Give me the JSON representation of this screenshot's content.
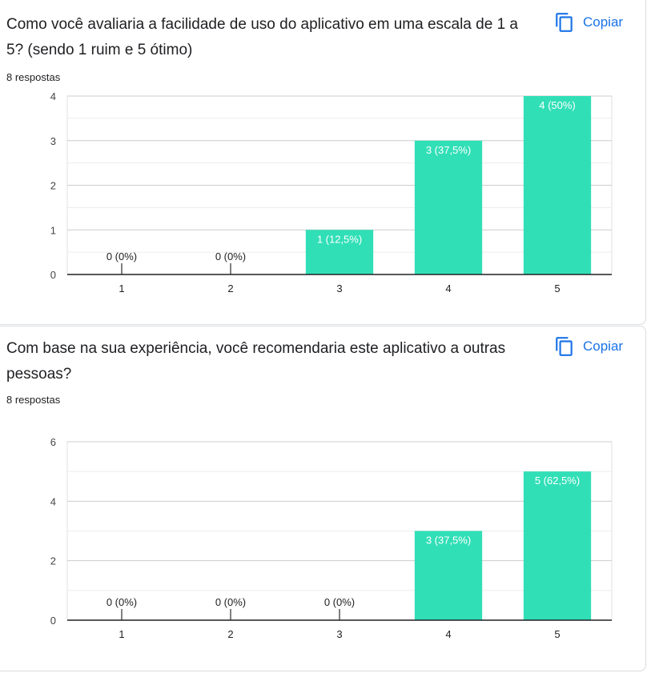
{
  "questions": [
    {
      "title": "Como você avaliaria a facilidade de uso do aplicativo em uma escala de 1 a 5? (sendo 1 ruim e 5 ótimo)",
      "responses": "8 respostas",
      "copy_label": "Copiar",
      "copy_icon": "copy-icon"
    },
    {
      "title": "Com base na sua experiência, você recomendaria este aplicativo a outras pessoas?",
      "responses": "8 respostas",
      "copy_label": "Copiar",
      "copy_icon": "copy-icon"
    }
  ],
  "colors": {
    "bar": "#31dfb7",
    "accent": "#1a73e8",
    "grid": "#e0e0e0",
    "axis": "#202124",
    "label_on_bar": "#ffffff"
  },
  "chart_data": [
    {
      "type": "bar",
      "categories": [
        "1",
        "2",
        "3",
        "4",
        "5"
      ],
      "values": [
        0,
        0,
        1,
        3,
        4
      ],
      "labels": [
        "0 (0%)",
        "0 (0%)",
        "1 (12,5%)",
        "3 (37,5%)",
        "4 (50%)"
      ],
      "yticks": [
        0,
        1,
        2,
        3,
        4
      ],
      "ylim": [
        0,
        4
      ],
      "grid": true,
      "minor_grid": true
    },
    {
      "type": "bar",
      "categories": [
        "1",
        "2",
        "3",
        "4",
        "5"
      ],
      "values": [
        0,
        0,
        0,
        3,
        5
      ],
      "labels": [
        "0 (0%)",
        "0 (0%)",
        "0 (0%)",
        "3 (37,5%)",
        "5 (62,5%)"
      ],
      "yticks": [
        0,
        2,
        4,
        6
      ],
      "ylim": [
        0,
        6
      ],
      "grid": true,
      "minor_grid": true
    }
  ]
}
